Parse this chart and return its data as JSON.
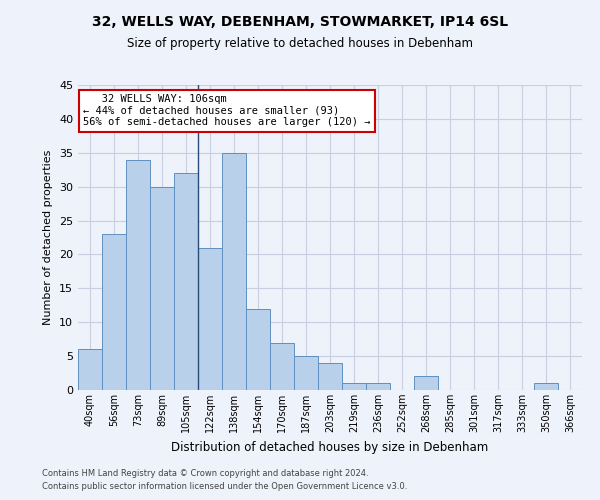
{
  "title1": "32, WELLS WAY, DEBENHAM, STOWMARKET, IP14 6SL",
  "title2": "Size of property relative to detached houses in Debenham",
  "xlabel": "Distribution of detached houses by size in Debenham",
  "ylabel": "Number of detached properties",
  "bar_color": "#b8d0ea",
  "bar_edge_color": "#6090c0",
  "background_color": "#eef2fa",
  "grid_color": "#c8cfe0",
  "categories": [
    "40sqm",
    "56sqm",
    "73sqm",
    "89sqm",
    "105sqm",
    "122sqm",
    "138sqm",
    "154sqm",
    "170sqm",
    "187sqm",
    "203sqm",
    "219sqm",
    "236sqm",
    "252sqm",
    "268sqm",
    "285sqm",
    "301sqm",
    "317sqm",
    "333sqm",
    "350sqm",
    "366sqm"
  ],
  "values": [
    6,
    23,
    34,
    30,
    32,
    21,
    35,
    12,
    7,
    5,
    4,
    1,
    1,
    0,
    2,
    0,
    0,
    0,
    0,
    1,
    0
  ],
  "ylim": [
    0,
    45
  ],
  "yticks": [
    0,
    5,
    10,
    15,
    20,
    25,
    30,
    35,
    40,
    45
  ],
  "property_line_x": 4.5,
  "property_line_color": "#2a4a7a",
  "annotation_line1": "   32 WELLS WAY: 106sqm",
  "annotation_line2": "← 44% of detached houses are smaller (93)",
  "annotation_line3": "56% of semi-detached houses are larger (120) →",
  "annotation_box_color": "#ffffff",
  "annotation_box_edge": "#cc0000",
  "footer1": "Contains HM Land Registry data © Crown copyright and database right 2024.",
  "footer2": "Contains public sector information licensed under the Open Government Licence v3.0."
}
